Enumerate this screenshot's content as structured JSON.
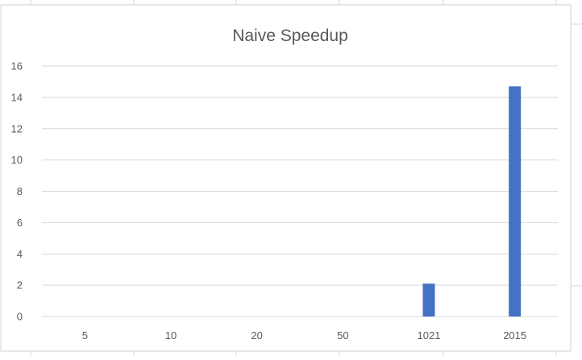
{
  "chart_data": {
    "type": "bar",
    "title": "Naive Speedup",
    "xlabel": "",
    "ylabel": "",
    "categories": [
      "5",
      "10",
      "20",
      "50",
      "1021",
      "2015"
    ],
    "series": [
      {
        "values": [
          0,
          0,
          0,
          0,
          2.1,
          14.7
        ]
      }
    ],
    "ylim": [
      0,
      16
    ],
    "yticks": [
      0,
      2,
      4,
      6,
      8,
      10,
      12,
      14,
      16
    ],
    "grid": true,
    "legend": "none",
    "colors": {
      "bar": "#4472c4",
      "text": "#595959",
      "grid": "#d9d9d9"
    }
  }
}
